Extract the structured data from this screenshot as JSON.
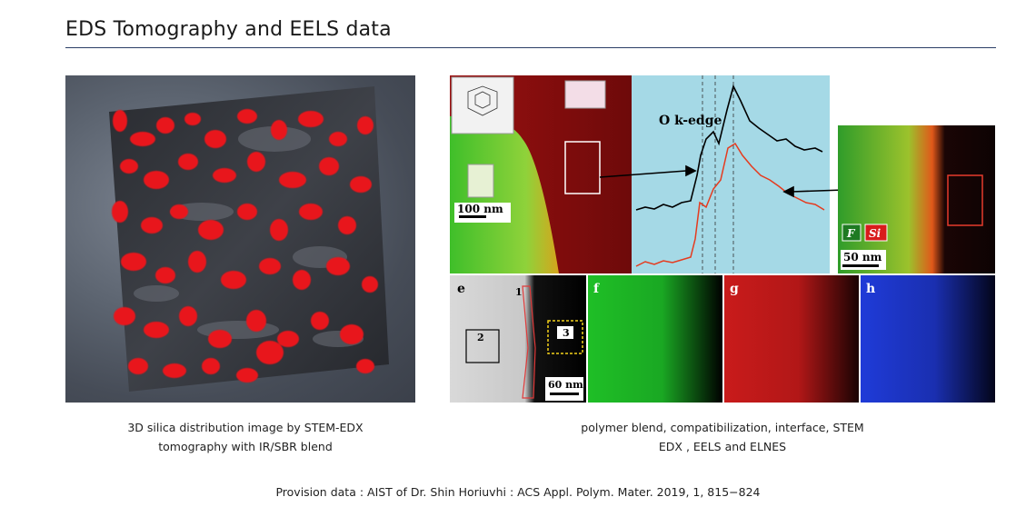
{
  "page": {
    "title": "EDS Tomography and EELS data",
    "caption_left_line1": "3D silica distribution image by STEM-EDX",
    "caption_left_line2": "tomography with IR/SBR blend",
    "caption_right_line1": "polymer blend, compatibilization, interface, STEM",
    "caption_right_line2": "EDX , EELS and ELNES",
    "source": "Provision data : AIST of Dr. Shin Horiuvhi : ACS Appl. Polym. Mater. 2019, 1, 815−824"
  },
  "figure": {
    "scalebar_100": "100 nm",
    "scalebar_50": "50 nm",
    "scalebar_60": "60 nm",
    "edge_label": "O k-edge",
    "legend_f": "F",
    "legend_si": "Si",
    "panel_e": "e",
    "panel_f": "f",
    "panel_g": "g",
    "panel_h": "h",
    "marker_1": "1",
    "marker_2": "2",
    "marker_3": "3"
  },
  "colors": {
    "rule": "#2b3f66",
    "silica_red": "#e8141a",
    "eels_bg": "#9fd6e3",
    "map_green": "#22c22a",
    "map_red": "#d21d1d",
    "map_blue": "#1f3bd8"
  }
}
